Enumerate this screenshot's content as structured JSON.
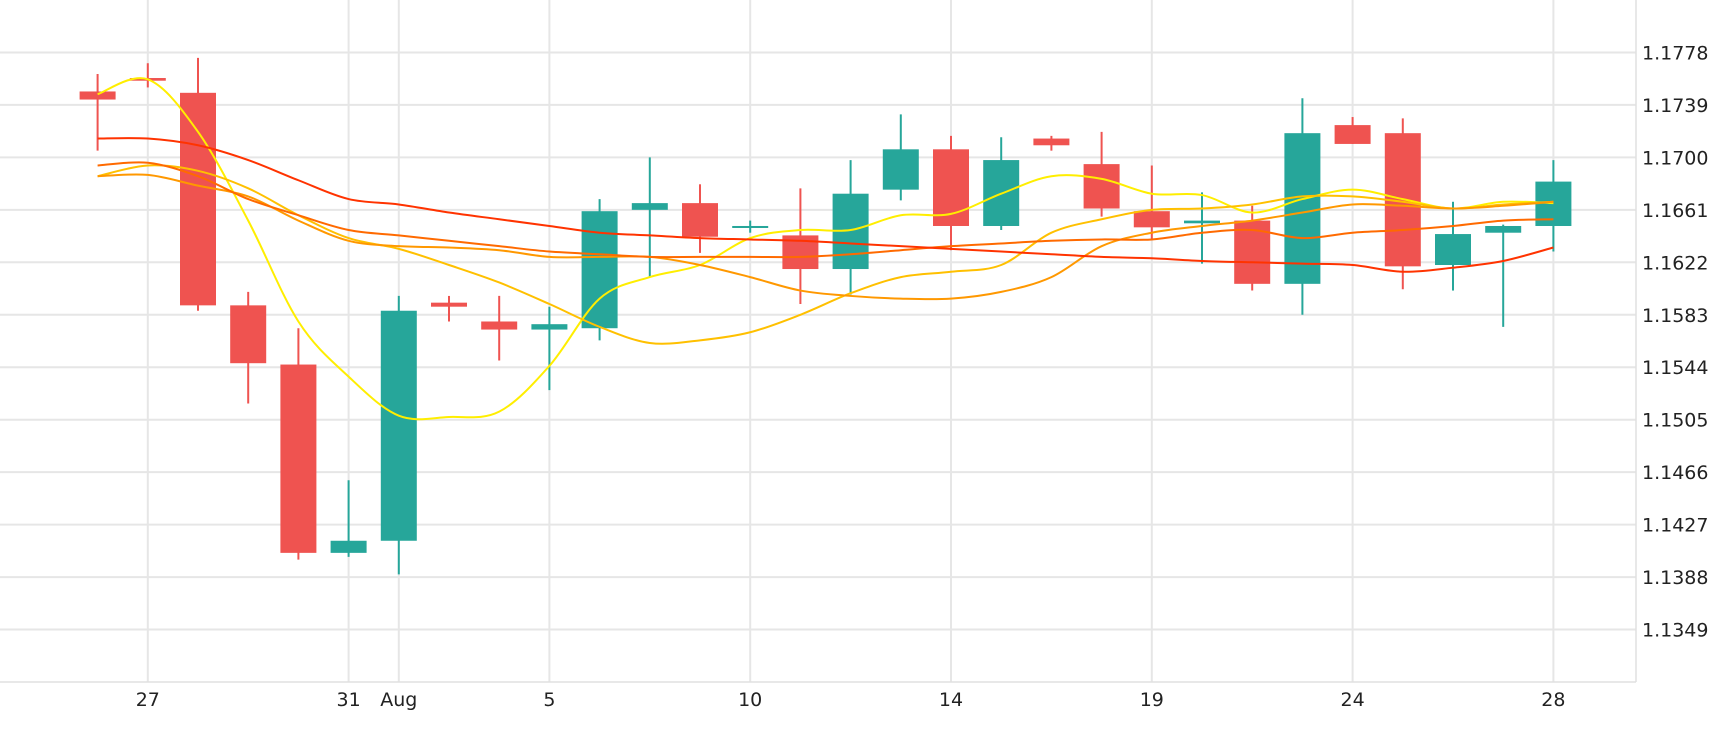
{
  "chart_data": {
    "type": "candlestick",
    "title": "",
    "xlabel": "",
    "ylabel": "",
    "ylim": [
      1.131,
      1.1817
    ],
    "grid": true,
    "y_ticks": [
      "1.1778",
      "1.1739",
      "1.1700",
      "1.1661",
      "1.1622",
      "1.1583",
      "1.1544",
      "1.1505",
      "1.1466",
      "1.1427",
      "1.1388",
      "1.1349"
    ],
    "x_ticks": [
      {
        "index": 1,
        "label": "27"
      },
      {
        "index": 5,
        "label": "31"
      },
      {
        "index": 6,
        "label": "Aug"
      },
      {
        "index": 9,
        "label": "5"
      },
      {
        "index": 13,
        "label": "10"
      },
      {
        "index": 17,
        "label": "14"
      },
      {
        "index": 21,
        "label": "19"
      },
      {
        "index": 25,
        "label": "24"
      },
      {
        "index": 29,
        "label": "28"
      }
    ],
    "colors": {
      "up": "#26a69a",
      "down": "#ef5350",
      "grid": "#e6e6e6",
      "axis": "#e0e0e0"
    },
    "candles": [
      {
        "o": 1.1749,
        "h": 1.1762,
        "l": 1.1705,
        "c": 1.1743
      },
      {
        "o": 1.1759,
        "h": 1.177,
        "l": 1.1752,
        "c": 1.1757
      },
      {
        "o": 1.1748,
        "h": 1.1774,
        "l": 1.1586,
        "c": 1.159
      },
      {
        "o": 1.159,
        "h": 1.16,
        "l": 1.1517,
        "c": 1.1547
      },
      {
        "o": 1.1546,
        "h": 1.1573,
        "l": 1.1401,
        "c": 1.1406
      },
      {
        "o": 1.1406,
        "h": 1.146,
        "l": 1.1403,
        "c": 1.1415
      },
      {
        "o": 1.1415,
        "h": 1.1597,
        "l": 1.139,
        "c": 1.1586
      },
      {
        "o": 1.1592,
        "h": 1.1597,
        "l": 1.1578,
        "c": 1.1589
      },
      {
        "o": 1.1578,
        "h": 1.1597,
        "l": 1.1549,
        "c": 1.1572
      },
      {
        "o": 1.1572,
        "h": 1.1589,
        "l": 1.1527,
        "c": 1.1576
      },
      {
        "o": 1.1573,
        "h": 1.1669,
        "l": 1.1564,
        "c": 1.166
      },
      {
        "o": 1.1661,
        "h": 1.17,
        "l": 1.1611,
        "c": 1.1666
      },
      {
        "o": 1.1666,
        "h": 1.168,
        "l": 1.1629,
        "c": 1.1641
      },
      {
        "o": 1.1648,
        "h": 1.1653,
        "l": 1.1644,
        "c": 1.1649
      },
      {
        "o": 1.1642,
        "h": 1.1677,
        "l": 1.1591,
        "c": 1.1617
      },
      {
        "o": 1.1617,
        "h": 1.1698,
        "l": 1.1598,
        "c": 1.1673
      },
      {
        "o": 1.1676,
        "h": 1.1732,
        "l": 1.1668,
        "c": 1.1706
      },
      {
        "o": 1.1706,
        "h": 1.1716,
        "l": 1.1631,
        "c": 1.1649
      },
      {
        "o": 1.1649,
        "h": 1.1715,
        "l": 1.1646,
        "c": 1.1698
      },
      {
        "o": 1.1714,
        "h": 1.1716,
        "l": 1.1705,
        "c": 1.1709
      },
      {
        "o": 1.1695,
        "h": 1.1719,
        "l": 1.1656,
        "c": 1.1662
      },
      {
        "o": 1.166,
        "h": 1.1694,
        "l": 1.1639,
        "c": 1.1648
      },
      {
        "o": 1.1651,
        "h": 1.1674,
        "l": 1.1621,
        "c": 1.1653
      },
      {
        "o": 1.1653,
        "h": 1.1664,
        "l": 1.1601,
        "c": 1.1606
      },
      {
        "o": 1.1606,
        "h": 1.1744,
        "l": 1.1583,
        "c": 1.1718
      },
      {
        "o": 1.1724,
        "h": 1.173,
        "l": 1.171,
        "c": 1.171
      },
      {
        "o": 1.1718,
        "h": 1.1729,
        "l": 1.1602,
        "c": 1.1619
      },
      {
        "o": 1.162,
        "h": 1.1667,
        "l": 1.1601,
        "c": 1.1643
      },
      {
        "o": 1.1644,
        "h": 1.165,
        "l": 1.1574,
        "c": 1.1649
      },
      {
        "o": 1.1649,
        "h": 1.1698,
        "l": 1.163,
        "c": 1.1682
      }
    ],
    "series": [
      {
        "name": "ma-yellow",
        "color": "#ffee00",
        "values": [
          1.1747,
          1.1758,
          1.1719,
          1.1653,
          1.1578,
          1.1537,
          1.1508,
          1.1507,
          1.1511,
          1.1545,
          1.1595,
          1.1611,
          1.162,
          1.164,
          1.1646,
          1.1646,
          1.1657,
          1.1658,
          1.1673,
          1.1686,
          1.1684,
          1.1673,
          1.1672,
          1.1659,
          1.1669,
          1.1676,
          1.1669,
          1.1662,
          1.1667,
          1.1666
        ]
      },
      {
        "name": "ma-gold",
        "color": "#ffc000",
        "values": [
          1.1686,
          1.1694,
          1.169,
          1.1677,
          1.1657,
          1.164,
          1.1632,
          1.162,
          1.1607,
          1.1591,
          1.1574,
          1.1562,
          1.1564,
          1.157,
          1.1583,
          1.1599,
          1.1611,
          1.1615,
          1.162,
          1.1644,
          1.1654,
          1.1661,
          1.1662,
          1.1665,
          1.1671,
          1.1671,
          1.1667,
          1.1662,
          1.1665,
          1.1667
        ]
      },
      {
        "name": "ma-orange",
        "color": "#ff9800",
        "values": [
          1.1686,
          1.1687,
          1.1679,
          1.1671,
          1.1653,
          1.1638,
          1.1634,
          1.1633,
          1.1631,
          1.1626,
          1.1626,
          1.1626,
          1.162,
          1.1611,
          1.1601,
          1.1597,
          1.1595,
          1.1595,
          1.16,
          1.1611,
          1.1634,
          1.1644,
          1.1649,
          1.1653,
          1.1659,
          1.1665,
          1.1664,
          1.1662,
          1.1664,
          1.1667
        ]
      },
      {
        "name": "ma-dark-orange",
        "color": "#ff6a00",
        "values": [
          1.1694,
          1.1696,
          1.1686,
          1.1669,
          1.1657,
          1.1646,
          1.1642,
          1.1638,
          1.1634,
          1.163,
          1.1628,
          1.1626,
          1.1626,
          1.1626,
          1.1626,
          1.1628,
          1.1631,
          1.1634,
          1.1636,
          1.1638,
          1.1639,
          1.1639,
          1.1644,
          1.1646,
          1.164,
          1.1644,
          1.1646,
          1.1649,
          1.1653,
          1.1654
        ]
      },
      {
        "name": "ma-red",
        "color": "#ff3300",
        "values": [
          1.1714,
          1.1714,
          1.1709,
          1.1698,
          1.1683,
          1.1669,
          1.1665,
          1.1659,
          1.1654,
          1.1649,
          1.1644,
          1.1642,
          1.164,
          1.1639,
          1.1638,
          1.1636,
          1.1634,
          1.1632,
          1.163,
          1.1628,
          1.1626,
          1.1625,
          1.1623,
          1.1622,
          1.1621,
          1.162,
          1.1615,
          1.1618,
          1.1623,
          1.1633
        ]
      }
    ]
  }
}
